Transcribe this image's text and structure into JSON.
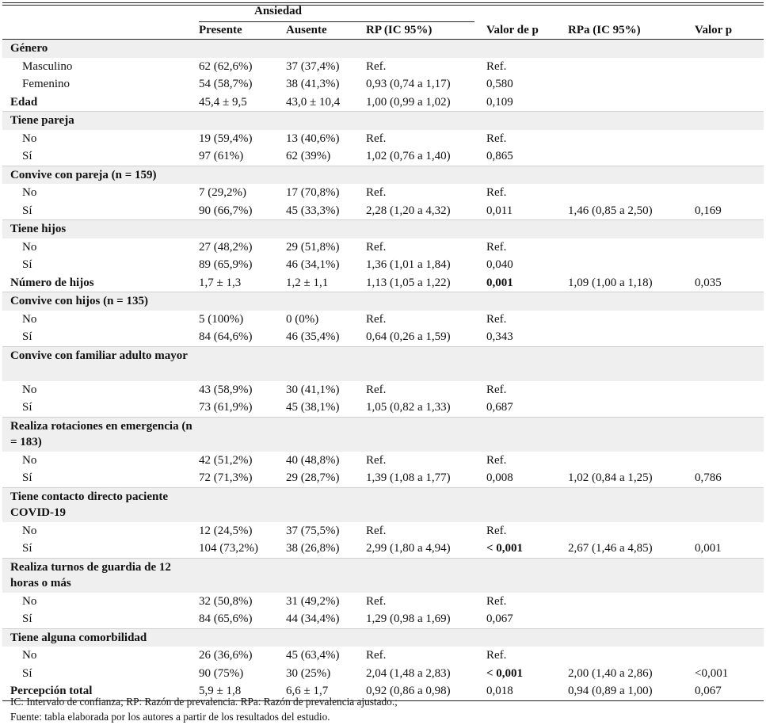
{
  "header": {
    "group": "Ansiedad",
    "columns": [
      "",
      "Presente",
      "Ausente",
      "RP (IC 95%)",
      "Valor de p",
      "RPa (IC 95%)",
      "Valor p"
    ]
  },
  "rows": [
    {
      "type": "sec",
      "label": "Género",
      "presente": "",
      "ausente": "",
      "rp": "",
      "p": "",
      "rpa": "",
      "pa": ""
    },
    {
      "type": "sub",
      "label": "Masculino",
      "presente": "62 (62,6%)",
      "ausente": "37 (37,4%)",
      "rp": "Ref.",
      "p": "Ref.",
      "rpa": "",
      "pa": ""
    },
    {
      "type": "sub",
      "label": "Femenino",
      "presente": "54 (58,7%)",
      "ausente": "38 (41,3%)",
      "rp": "0,93 (0,74 a 1,17)",
      "p": "0,580",
      "rpa": "",
      "pa": ""
    },
    {
      "type": "main",
      "label": "Edad",
      "presente": "45,4 ± 9,5",
      "ausente": "43,0 ± 10,4",
      "rp": "1,00 (0,99 a 1,02)",
      "p": "0,109",
      "rpa": "",
      "pa": ""
    },
    {
      "type": "sec",
      "label": "Tiene pareja",
      "presente": "",
      "ausente": "",
      "rp": "",
      "p": "",
      "rpa": "",
      "pa": ""
    },
    {
      "type": "sub",
      "label": "No",
      "presente": "19 (59,4%)",
      "ausente": "13 (40,6%)",
      "rp": "Ref.",
      "p": "Ref.",
      "rpa": "",
      "pa": ""
    },
    {
      "type": "sub",
      "label": "Sí",
      "presente": "97 (61%)",
      "ausente": "62 (39%)",
      "rp": "1,02 (0,76 a 1,40)",
      "p": "0,865",
      "rpa": "",
      "pa": ""
    },
    {
      "type": "sec",
      "label": "Convive con pareja (n = 159)",
      "presente": "",
      "ausente": "",
      "rp": "",
      "p": "",
      "rpa": "",
      "pa": ""
    },
    {
      "type": "sub",
      "label": "No",
      "presente": "7 (29,2%)",
      "ausente": "17 (70,8%)",
      "rp": "Ref.",
      "p": "Ref.",
      "rpa": "",
      "pa": ""
    },
    {
      "type": "sub",
      "label": "Sí",
      "presente": "90 (66,7%)",
      "ausente": "45 (33,3%)",
      "rp": "2,28 (1,20 a 4,32)",
      "p": "0,011",
      "rpa": "1,46 (0,85 a 2,50)",
      "pa": "0,169"
    },
    {
      "type": "sec",
      "label": "Tiene hijos",
      "presente": "",
      "ausente": "",
      "rp": "",
      "p": "",
      "rpa": "",
      "pa": ""
    },
    {
      "type": "sub",
      "label": "No",
      "presente": "27 (48,2%)",
      "ausente": "29 (51,8%)",
      "rp": "Ref.",
      "p": "Ref.",
      "rpa": "",
      "pa": ""
    },
    {
      "type": "sub",
      "label": "Sí",
      "presente": "89 (65,9%)",
      "ausente": "46 (34,1%)",
      "rp": "1,36 (1,01 a 1,84)",
      "p": "0,040",
      "rpa": "",
      "pa": ""
    },
    {
      "type": "main",
      "label": "Número de hijos",
      "presente": "1,7 ± 1,3",
      "ausente": "1,2 ± 1,1",
      "rp": "1,13 (1,05 a 1,22)",
      "p": "0,001",
      "pbold": true,
      "rpa": "1,09 (1,00 a 1,18)",
      "pa": "0,035"
    },
    {
      "type": "sec",
      "label": "Convive con hijos (n = 135)",
      "presente": "",
      "ausente": "",
      "rp": "",
      "p": "",
      "rpa": "",
      "pa": ""
    },
    {
      "type": "sub",
      "label": "No",
      "presente": "5 (100%)",
      "ausente": "0 (0%)",
      "rp": "Ref.",
      "p": "Ref.",
      "rpa": "",
      "pa": ""
    },
    {
      "type": "sub",
      "label": "Sí",
      "presente": "84 (64,6%)",
      "ausente": "46 (35,4%)",
      "rp": "0,64 (0,26 a 1,59)",
      "p": "0,343",
      "rpa": "",
      "pa": ""
    },
    {
      "type": "sec2",
      "label": "Convive con familiar adulto mayor",
      "presente": "",
      "ausente": "",
      "rp": "",
      "p": "",
      "rpa": "",
      "pa": ""
    },
    {
      "type": "sub",
      "label": "No",
      "presente": "43 (58,9%)",
      "ausente": "30 (41,1%)",
      "rp": "Ref.",
      "p": "Ref.",
      "rpa": "",
      "pa": ""
    },
    {
      "type": "sub",
      "label": "Sí",
      "presente": "73 (61,9%)",
      "ausente": "45 (38,1%)",
      "rp": "1,05 (0,82 a 1,33)",
      "p": "0,687",
      "rpa": "",
      "pa": ""
    },
    {
      "type": "sec2",
      "label": "Realiza rotaciones en emergencia (n = 183)",
      "presente": "",
      "ausente": "",
      "rp": "",
      "p": "",
      "rpa": "",
      "pa": ""
    },
    {
      "type": "sub",
      "label": "No",
      "presente": "42 (51,2%)",
      "ausente": "40 (48,8%)",
      "rp": "Ref.",
      "p": "Ref.",
      "rpa": "",
      "pa": ""
    },
    {
      "type": "sub",
      "label": "Sí",
      "presente": "72 (71,3%)",
      "ausente": "29 (28,7%)",
      "rp": "1,39 (1,08 a 1,77)",
      "p": "0,008",
      "rpa": "1,02 (0,84 a 1,25)",
      "pa": "0,786"
    },
    {
      "type": "sec2",
      "label": "Tiene contacto directo paciente COVID-19",
      "presente": "",
      "ausente": "",
      "rp": "",
      "p": "",
      "rpa": "",
      "pa": ""
    },
    {
      "type": "sub",
      "label": "No",
      "presente": "12 (24,5%)",
      "ausente": "37 (75,5%)",
      "rp": "Ref.",
      "p": "Ref.",
      "rpa": "",
      "pa": ""
    },
    {
      "type": "sub",
      "label": "Sí",
      "presente": "104 (73,2%)",
      "ausente": "38 (26,8%)",
      "rp": "2,99 (1,80 a 4,94)",
      "p": "< 0,001",
      "pbold": true,
      "rpa": "2,67 (1,46 a 4,85)",
      "pa": "0,001"
    },
    {
      "type": "sec2",
      "label": "Realiza turnos de guardia de 12 horas o más",
      "presente": "",
      "ausente": "",
      "rp": "",
      "p": "",
      "rpa": "",
      "pa": ""
    },
    {
      "type": "sub",
      "label": "No",
      "presente": "32 (50,8%)",
      "ausente": "31 (49,2%)",
      "rp": "Ref.",
      "p": "Ref.",
      "rpa": "",
      "pa": ""
    },
    {
      "type": "sub",
      "label": "Sí",
      "presente": "84 (65,6%)",
      "ausente": "44 (34,4%)",
      "rp": "1,29 (0,98 a 1,69)",
      "p": "0,067",
      "rpa": "",
      "pa": ""
    },
    {
      "type": "sec",
      "label": "Tiene alguna comorbilidad",
      "presente": "",
      "ausente": "",
      "rp": "",
      "p": "",
      "rpa": "",
      "pa": ""
    },
    {
      "type": "sub",
      "label": "No",
      "presente": "26 (36,6%)",
      "ausente": "45 (63,4%)",
      "rp": "Ref.",
      "p": "Ref.",
      "rpa": "",
      "pa": ""
    },
    {
      "type": "sub",
      "label": "Sí",
      "presente": "90 (75%)",
      "ausente": "30 (25%)",
      "rp": "2,04 (1,48 a 2,83)",
      "p": "< 0,001",
      "pbold": true,
      "rpa": "2,00 (1,40 a 2,86)",
      "pa": "<0,001"
    },
    {
      "type": "main",
      "label": "Percepción total",
      "presente": "5,9 ± 1,8",
      "ausente": "6,6 ± 1,7",
      "rp": "0,92 (0,86 a 0,98)",
      "p": "0,018",
      "rpa": "0,94 (0,89 a 1,00)",
      "pa": "0,067"
    }
  ],
  "notes": [
    "IC: Intervalo de confianza; RP: Razón de prevalencia. RPa: Razón de prevalencia ajustado.;",
    "Fuente: tabla elaborada por los autores a partir de los resultados del estudio."
  ]
}
